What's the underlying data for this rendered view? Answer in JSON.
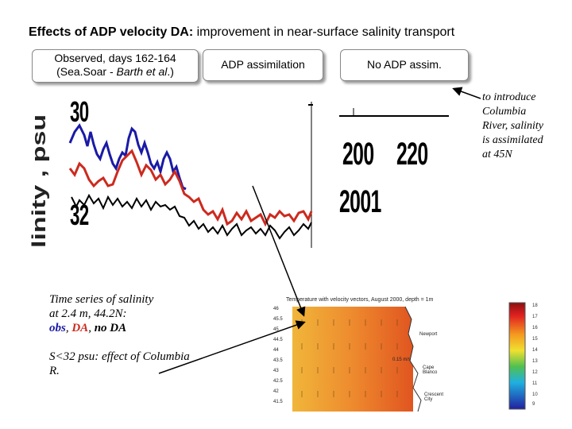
{
  "title": {
    "bold": "Effects of ADP velocity DA:",
    "rest": " improvement in near-surface salinity transport"
  },
  "boxes": {
    "observed_line1": "Observed, days 162-164",
    "observed_line2_pre": "(Sea.Soar - ",
    "observed_line2_it": "Barth et al",
    "observed_line2_post": ".)",
    "adp": "ADP assimilation",
    "noadp": "No ADP assim."
  },
  "salinity_plot": {
    "ylabel": "linity , psu",
    "tick_30": "30",
    "tick_32": "32"
  },
  "noadp_plot": {
    "tick_200": "200",
    "tick_220": "220",
    "year": "2001"
  },
  "side_note": {
    "lines": [
      "to introduce",
      "Columbia",
      "River, salinity",
      "is assimilated",
      "at 45N"
    ]
  },
  "caption": {
    "line1": "Time series of salinity",
    "line2": "at 2.4 m, 44.2N:",
    "obs": "obs",
    "sep1": ", ",
    "da": "DA",
    "sep2": ", ",
    "noda": "no DA",
    "line4": "S<32 psu: effect of Columbia",
    "line5": "R."
  },
  "map": {
    "title": "Temperature with velocity vectors, August 2000, depth = 1m",
    "lat_ticks": [
      "46",
      "45.5",
      "45",
      "44.5",
      "44",
      "43.5",
      "43",
      "42.5",
      "42",
      "41.5"
    ],
    "places": [
      "Newport",
      "Cape Blanco",
      "Crescent City"
    ],
    "scale": "0.15 m/s"
  },
  "colorbar": {
    "ticks": [
      "18",
      "17",
      "16",
      "15",
      "14",
      "13",
      "12",
      "11",
      "10",
      "9"
    ]
  },
  "colors": {
    "obs": "#1a1aa6",
    "da": "#cc2a1e",
    "noda": "#000000"
  }
}
